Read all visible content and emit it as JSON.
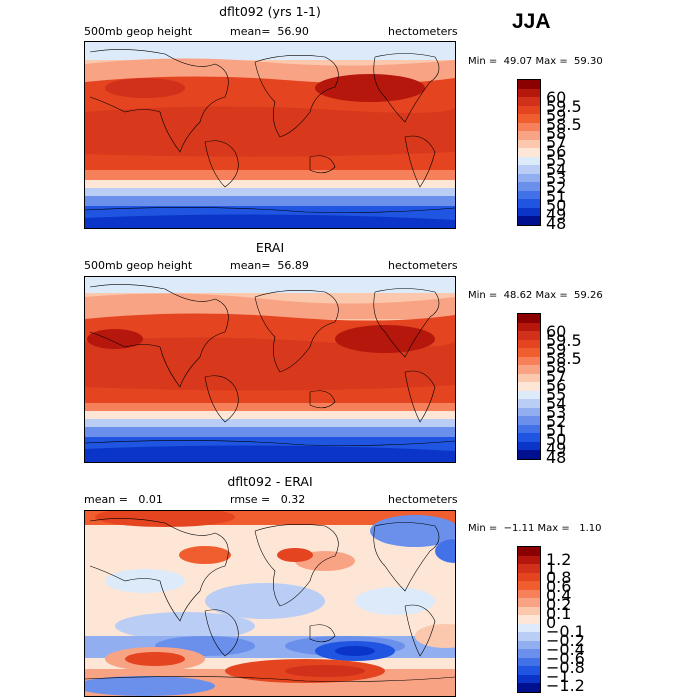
{
  "season": "JJA",
  "panels": [
    {
      "title": "dflt092 (yrs 1-1)",
      "left_label": "500mb geop height",
      "stat1": "mean=  56.90",
      "stat2": "",
      "units": "hectometers",
      "minmax": "Min =  49.07 Max =  59.30",
      "colorbar": {
        "labels": [
          "60",
          "59.5",
          "59",
          "58.5",
          "58",
          "57",
          "56",
          "55",
          "54",
          "53",
          "52",
          "51",
          "50",
          "49",
          "48"
        ],
        "colors": [
          "#8b0000",
          "#b5170d",
          "#d1301a",
          "#e4441f",
          "#f05d2e",
          "#f6805a",
          "#f9a385",
          "#fbc8ae",
          "#fde6d6",
          "#ddeafa",
          "#b9cdf5",
          "#90aef0",
          "#6a90ec",
          "#4372e8",
          "#1f55e0",
          "#0a35c8",
          "#00108f"
        ]
      }
    },
    {
      "title": "ERAI",
      "left_label": "500mb geop height",
      "stat1": "mean=  56.89",
      "stat2": "",
      "units": "hectometers",
      "minmax": "Min =  48.62 Max =  59.26",
      "colorbar": {
        "labels": [
          "60",
          "59.5",
          "59",
          "58.5",
          "58",
          "57",
          "56",
          "55",
          "54",
          "53",
          "52",
          "51",
          "50",
          "49",
          "48"
        ],
        "colors": [
          "#8b0000",
          "#b5170d",
          "#d1301a",
          "#e4441f",
          "#f05d2e",
          "#f6805a",
          "#f9a385",
          "#fbc8ae",
          "#fde6d6",
          "#ddeafa",
          "#b9cdf5",
          "#90aef0",
          "#6a90ec",
          "#4372e8",
          "#1f55e0",
          "#0a35c8",
          "#00108f"
        ]
      }
    },
    {
      "title": "dflt092 - ERAI",
      "left_label": "mean =   0.01",
      "stat1": "rmse =   0.32",
      "stat2": "",
      "units": "hectometers",
      "minmax": "Min =  −1.11 Max =   1.10",
      "colorbar": {
        "labels": [
          "1.2",
          "1",
          "0.8",
          "0.6",
          "0.4",
          "0.2",
          "0.1",
          "0",
          "−0.1",
          "−0.2",
          "−0.4",
          "−0.6",
          "−0.8",
          "−1",
          "−1.2"
        ],
        "colors": [
          "#8b0000",
          "#b5170d",
          "#d1301a",
          "#e4441f",
          "#f05d2e",
          "#f6805a",
          "#f9a385",
          "#fbc8ae",
          "#fde6d6",
          "#ddeafa",
          "#b9cdf5",
          "#90aef0",
          "#6a90ec",
          "#4372e8",
          "#1f55e0",
          "#0a35c8",
          "#00108f"
        ]
      }
    }
  ]
}
